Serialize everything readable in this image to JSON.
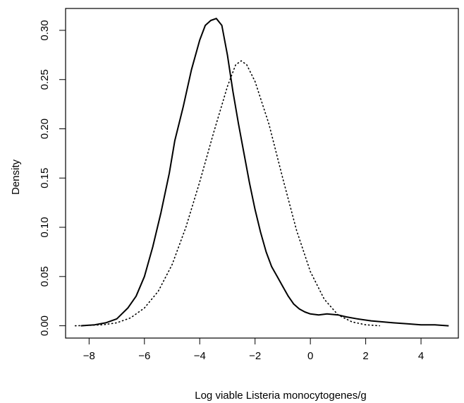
{
  "chart_data": {
    "type": "line",
    "title": "",
    "xlabel": "Log viable Listeria monocytogenes/g",
    "ylabel": "Density",
    "xlim": [
      -8.85,
      5.35
    ],
    "ylim": [
      -0.0125,
      0.3222
    ],
    "grid": false,
    "x_ticks": [
      -8,
      -6,
      -4,
      -2,
      0,
      2,
      4
    ],
    "x_tick_labels": [
      "−8",
      "−6",
      "−4",
      "−2",
      "0",
      "2",
      "4"
    ],
    "y_ticks": [
      0.0,
      0.05,
      0.1,
      0.15,
      0.2,
      0.25,
      0.3
    ],
    "y_tick_labels": [
      "0.00",
      "0.05",
      "0.10",
      "0.15",
      "0.20",
      "0.25",
      "0.30"
    ],
    "series": [
      {
        "style": "solid",
        "color": "#000000",
        "points": [
          [
            -8.3,
            0.0
          ],
          [
            -7.8,
            0.001
          ],
          [
            -7.4,
            0.003
          ],
          [
            -7.0,
            0.007
          ],
          [
            -6.6,
            0.018
          ],
          [
            -6.3,
            0.03
          ],
          [
            -6.0,
            0.05
          ],
          [
            -5.7,
            0.08
          ],
          [
            -5.4,
            0.115
          ],
          [
            -5.1,
            0.155
          ],
          [
            -4.9,
            0.188
          ],
          [
            -4.6,
            0.222
          ],
          [
            -4.3,
            0.26
          ],
          [
            -4.0,
            0.29
          ],
          [
            -3.8,
            0.305
          ],
          [
            -3.6,
            0.31
          ],
          [
            -3.4,
            0.312
          ],
          [
            -3.2,
            0.305
          ],
          [
            -3.0,
            0.275
          ],
          [
            -2.8,
            0.238
          ],
          [
            -2.6,
            0.205
          ],
          [
            -2.4,
            0.175
          ],
          [
            -2.2,
            0.145
          ],
          [
            -2.0,
            0.118
          ],
          [
            -1.8,
            0.095
          ],
          [
            -1.6,
            0.075
          ],
          [
            -1.4,
            0.06
          ],
          [
            -1.2,
            0.05
          ],
          [
            -1.0,
            0.04
          ],
          [
            -0.8,
            0.03
          ],
          [
            -0.6,
            0.022
          ],
          [
            -0.4,
            0.017
          ],
          [
            -0.2,
            0.014
          ],
          [
            0.0,
            0.012
          ],
          [
            0.3,
            0.011
          ],
          [
            0.6,
            0.012
          ],
          [
            1.0,
            0.011
          ],
          [
            1.3,
            0.009
          ],
          [
            1.7,
            0.007
          ],
          [
            2.2,
            0.005
          ],
          [
            2.6,
            0.004
          ],
          [
            3.0,
            0.003
          ],
          [
            3.5,
            0.002
          ],
          [
            4.0,
            0.001
          ],
          [
            4.5,
            0.001
          ],
          [
            5.0,
            0.0
          ]
        ]
      },
      {
        "style": "dotted",
        "color": "#000000",
        "points": [
          [
            -8.5,
            0.0
          ],
          [
            -8.0,
            0.0005
          ],
          [
            -7.5,
            0.001
          ],
          [
            -7.0,
            0.003
          ],
          [
            -6.5,
            0.008
          ],
          [
            -6.0,
            0.018
          ],
          [
            -5.5,
            0.035
          ],
          [
            -5.0,
            0.062
          ],
          [
            -4.5,
            0.1
          ],
          [
            -4.0,
            0.146
          ],
          [
            -3.5,
            0.196
          ],
          [
            -3.0,
            0.243
          ],
          [
            -2.7,
            0.265
          ],
          [
            -2.5,
            0.269
          ],
          [
            -2.3,
            0.265
          ],
          [
            -2.0,
            0.248
          ],
          [
            -1.5,
            0.205
          ],
          [
            -1.0,
            0.15
          ],
          [
            -0.5,
            0.097
          ],
          [
            0.0,
            0.055
          ],
          [
            0.5,
            0.027
          ],
          [
            1.0,
            0.011
          ],
          [
            1.5,
            0.004
          ],
          [
            2.0,
            0.001
          ],
          [
            2.5,
            0.0
          ]
        ]
      }
    ]
  }
}
